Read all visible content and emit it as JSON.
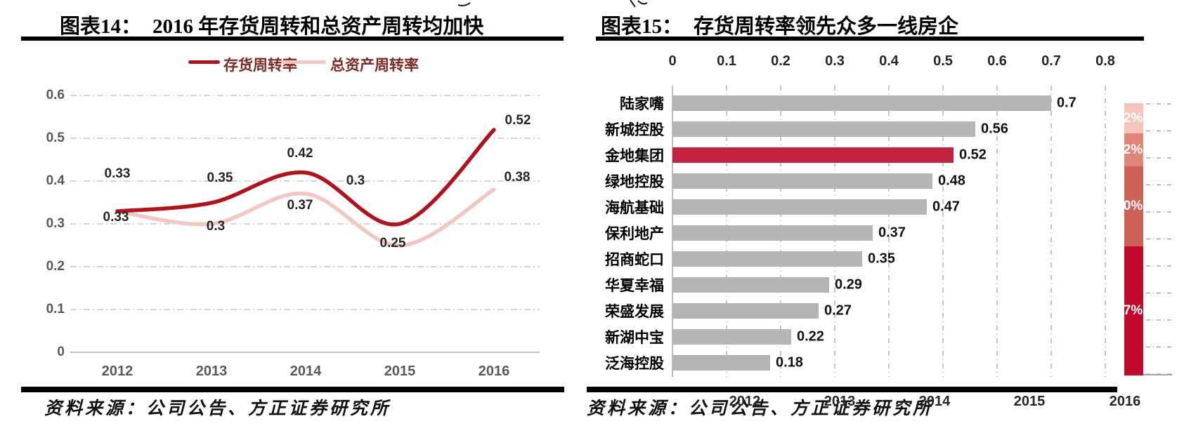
{
  "left_chart": {
    "caption_label": "图表14：",
    "caption_text": "2016 年存货周转和总资产周转均加快",
    "legend": [
      {
        "label": "存货周转率",
        "color": "#b2121b"
      },
      {
        "label": "总资产周转率",
        "color": "#f2c7bf"
      }
    ],
    "y_ticks": [
      "0.6",
      "0.5",
      "0.4",
      "0.3",
      "0.2",
      "0.1",
      "0"
    ],
    "x_ticks": [
      "2012",
      "2013",
      "2014",
      "2015",
      "2016"
    ],
    "series": [
      {
        "name": "存货周转率",
        "color": "#b2121b",
        "values": [
          0.33,
          0.35,
          0.42,
          0.3,
          0.52
        ],
        "labels": [
          "0.33",
          "0.35",
          "0.42",
          "0.3",
          "0.52"
        ]
      },
      {
        "name": "总资产周转率",
        "color": "#f2c7bf",
        "values": [
          0.33,
          0.3,
          0.37,
          0.25,
          0.38
        ],
        "labels": [
          "0.33",
          "0.3",
          "0.37",
          "0.25",
          "0.38"
        ]
      }
    ],
    "source": "资料来源：公司公告、方正证券研究所"
  },
  "right_chart": {
    "caption_label": "图表15：",
    "caption_text": "存货周转率领先众多一线房企",
    "axis_ticks": [
      "0",
      "0.1",
      "0.2",
      "0.3",
      "0.4",
      "0.5",
      "0.6",
      "0.7",
      "0.8"
    ],
    "bar_color": "#b5b5b5",
    "highlight_color": "#c3223e",
    "bars": [
      {
        "name": "陆家嘴",
        "value": 0.7,
        "label": "0.7",
        "highlight": false
      },
      {
        "name": "新城控股",
        "value": 0.56,
        "label": "0.56",
        "highlight": false
      },
      {
        "name": "金地集团",
        "value": 0.52,
        "label": "0.52",
        "highlight": true
      },
      {
        "name": "绿地控股",
        "value": 0.48,
        "label": "0.48",
        "highlight": false
      },
      {
        "name": "海航基础",
        "value": 0.47,
        "label": "0.47",
        "highlight": false
      },
      {
        "name": "保利地产",
        "value": 0.37,
        "label": "0.37",
        "highlight": false
      },
      {
        "name": "招商蛇口",
        "value": 0.35,
        "label": "0.35",
        "highlight": false
      },
      {
        "name": "华夏幸福",
        "value": 0.29,
        "label": "0.29",
        "highlight": false
      },
      {
        "name": "荣盛发展",
        "value": 0.27,
        "label": "0.27",
        "highlight": false
      },
      {
        "name": "新湖中宝",
        "value": 0.22,
        "label": "0.22",
        "highlight": false
      },
      {
        "name": "泛海控股",
        "value": 0.18,
        "label": "0.18",
        "highlight": false
      }
    ],
    "source": "资料来源：公司公告、方正证券研究所"
  },
  "side_fragment": {
    "description": "clipped stacked column of adjacent chart at right edge",
    "segments": [
      {
        "label": "2%",
        "color": "#f5c5bb"
      },
      {
        "label": "2%",
        "color": "#e08478"
      },
      {
        "label": "0%",
        "color": "#cd6057"
      },
      {
        "label": "7%",
        "color": "#c30a2e"
      }
    ],
    "x_years": [
      "2012",
      "2013",
      "2014",
      "2015",
      "2016"
    ]
  },
  "chart_data": [
    {
      "type": "line",
      "title": "图表14： 2016 年存货周转和总资产周转均加快",
      "x": [
        "2012",
        "2013",
        "2014",
        "2015",
        "2016"
      ],
      "series": [
        {
          "name": "存货周转率",
          "values": [
            0.33,
            0.35,
            0.42,
            0.3,
            0.52
          ]
        },
        {
          "name": "总资产周转率",
          "values": [
            0.33,
            0.3,
            0.37,
            0.25,
            0.38
          ]
        }
      ],
      "ylim": [
        0,
        0.6
      ],
      "ytick_step": 0.1,
      "grid": "horizontal dash-dot",
      "legend_position": "top",
      "smooth": true,
      "source": "资料来源：公司公告、方正证券研究所"
    },
    {
      "type": "bar",
      "orientation": "horizontal",
      "title": "图表15： 存货周转率领先众多一线房企",
      "categories": [
        "陆家嘴",
        "新城控股",
        "金地集团",
        "绿地控股",
        "海航基础",
        "保利地产",
        "招商蛇口",
        "华夏幸福",
        "荣盛发展",
        "新湖中宝",
        "泛海控股"
      ],
      "values": [
        0.7,
        0.56,
        0.52,
        0.48,
        0.47,
        0.37,
        0.35,
        0.29,
        0.27,
        0.22,
        0.18
      ],
      "highlighted_category": "金地集团",
      "xlim": [
        0,
        0.8
      ],
      "xtick_step": 0.1,
      "axis_position": "top",
      "grid": "vertical dashed",
      "source": "资料来源：公司公告、方正证券研究所"
    },
    {
      "type": "area",
      "note": "partially visible 100% stacked column chart clipped at right image edge; only 2016 column visible",
      "x": [
        "2012",
        "2013",
        "2014",
        "2015",
        "2016"
      ],
      "visible_column": "2016",
      "visible_segment_labels": [
        "2%",
        "2%",
        "0%",
        "7%"
      ],
      "grid": "horizontal dash-dot"
    }
  ]
}
